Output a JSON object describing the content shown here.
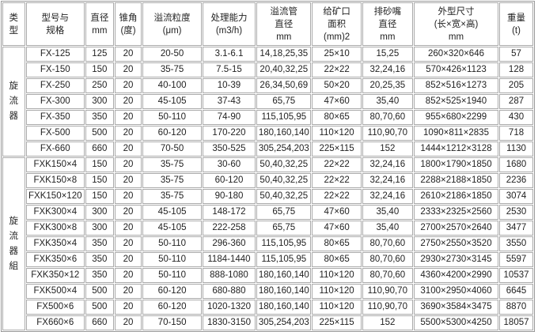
{
  "headers": [
    [
      "类",
      "型"
    ],
    [
      "型号与",
      "规格"
    ],
    [
      "直径",
      "mm"
    ],
    [
      "锥角",
      "(度)"
    ],
    [
      "溢流粒度",
      "(μm)"
    ],
    [
      "处理能力",
      "(m3/h)"
    ],
    [
      "溢流管",
      "直径",
      "mm"
    ],
    [
      "给矿口",
      "面积",
      "(mm)2"
    ],
    [
      "排砂嘴",
      "直径",
      "mm"
    ],
    [
      "外型尺寸",
      "(长×宽×高)",
      "mm"
    ],
    [
      "重量",
      "(t)"
    ]
  ],
  "groups": [
    {
      "type": [
        "旋",
        "流",
        "器"
      ],
      "rows": [
        [
          "FX-125",
          "125",
          "20",
          "20-50",
          "3.1-6.1",
          "14,18,25,35",
          "25×10",
          "15,25",
          "260×320×646",
          "57"
        ],
        [
          "FX-150",
          "150",
          "20",
          "35-75",
          "7.5-15",
          "20,40,32,25",
          "22×22",
          "32,24,16",
          "570×426×1123",
          "128"
        ],
        [
          "FX-250",
          "250",
          "20",
          "40-100",
          "10-39",
          "26,34,50,69",
          "50×20",
          "20,25,35",
          "852×516×1273",
          "205"
        ],
        [
          "FX-300",
          "300",
          "20",
          "45-105",
          "37-43",
          "65,75",
          "47×60",
          "35,40",
          "852×525×1940",
          "287"
        ],
        [
          "FX-350",
          "350",
          "20",
          "50-110",
          "74-90",
          "115,105,95",
          "80×65",
          "80,70,60",
          "955×680×2299",
          "430"
        ],
        [
          "FX-500",
          "500",
          "20",
          "60-120",
          "170-220",
          "180,160,140",
          "110×120",
          "110,90,70",
          "1090×811×2835",
          "718"
        ],
        [
          "FX-660",
          "660",
          "20",
          "70-50",
          "350-525",
          "305,254,203",
          "225×115",
          "152",
          "1444×1212×3128",
          "1130"
        ]
      ]
    },
    {
      "type": [
        "旋",
        "流",
        "器",
        "組"
      ],
      "rows": [
        [
          "FXK150×4",
          "150",
          "20",
          "35-75",
          "30-60",
          "50,40,32,25",
          "22×22",
          "32,24,16",
          "1800×1790×1850",
          "1680"
        ],
        [
          "FXK150×8",
          "150",
          "20",
          "35-75",
          "60-120",
          "50,40,32,25",
          "22×22",
          "32,24,16",
          "2288×2188×1850",
          "2236"
        ],
        [
          "FXK150×120",
          "150",
          "20",
          "35-75",
          "90-180",
          "50,40,32,25",
          "22×22",
          "32,24,16",
          "2610×2186×1850",
          "3074"
        ],
        [
          "FXK300×4",
          "300",
          "20",
          "45-105",
          "148-172",
          "65,75",
          "47×60",
          "35,40",
          "2333×2325×2560",
          "2530"
        ],
        [
          "FXK300×8",
          "300",
          "20",
          "45-105",
          "222-258",
          "65,75",
          "47×60",
          "35,40",
          "2700×2570×2640",
          "3477"
        ],
        [
          "FXK350×4",
          "350",
          "20",
          "50-110",
          "296-360",
          "115,105,95",
          "80×65",
          "80,70,60",
          "2750×2550×3520",
          "3550"
        ],
        [
          "FXK350×6",
          "350",
          "20",
          "50-110",
          "1184-1440",
          "115,105,95",
          "80×65",
          "80,70,60",
          "2930×2730×3145",
          "5597"
        ],
        [
          "FXK350×12",
          "350",
          "20",
          "50-110",
          "888-1080",
          "180,160,140",
          "110×120",
          "80,70,60",
          "4360×4200×2990",
          "10537"
        ],
        [
          "FXK500×4",
          "500",
          "20",
          "60-120",
          "680-880",
          "180,160,140",
          "110×120",
          "110,90,70",
          "3100×2950×4060",
          "6645"
        ],
        [
          "FX500×6",
          "500",
          "20",
          "60-120",
          "1020-1320",
          "180,160,140",
          "110×120",
          "110,90,70",
          "3690×3584×3475",
          "8870"
        ],
        [
          "FX660×6",
          "660",
          "20",
          "70-150",
          "1830-3150",
          "305,254,203",
          "225×115",
          "152",
          "5500×5300×4250",
          "18057"
        ]
      ]
    }
  ]
}
